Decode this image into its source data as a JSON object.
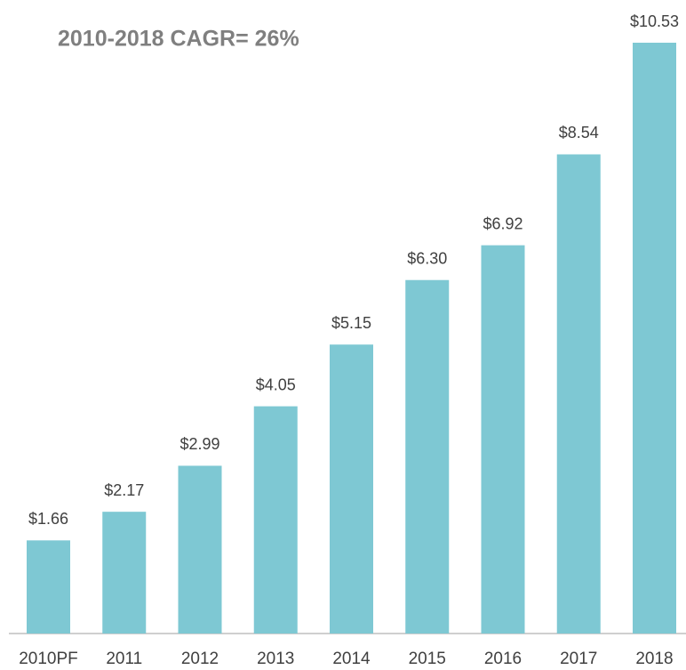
{
  "chart_data": {
    "type": "bar",
    "title": "2010-2018 CAGR= 26%",
    "categories": [
      "2010PF",
      "2011",
      "2012",
      "2013",
      "2014",
      "2015",
      "2016",
      "2017",
      "2018"
    ],
    "values": [
      1.66,
      2.17,
      2.99,
      4.05,
      5.15,
      6.3,
      6.92,
      8.54,
      10.53
    ],
    "value_labels": [
      "$1.66",
      "$2.17",
      "$2.99",
      "$4.05",
      "$5.15",
      "$6.30",
      "$6.92",
      "$8.54",
      "$10.53"
    ],
    "color": "#7ec8d3"
  }
}
